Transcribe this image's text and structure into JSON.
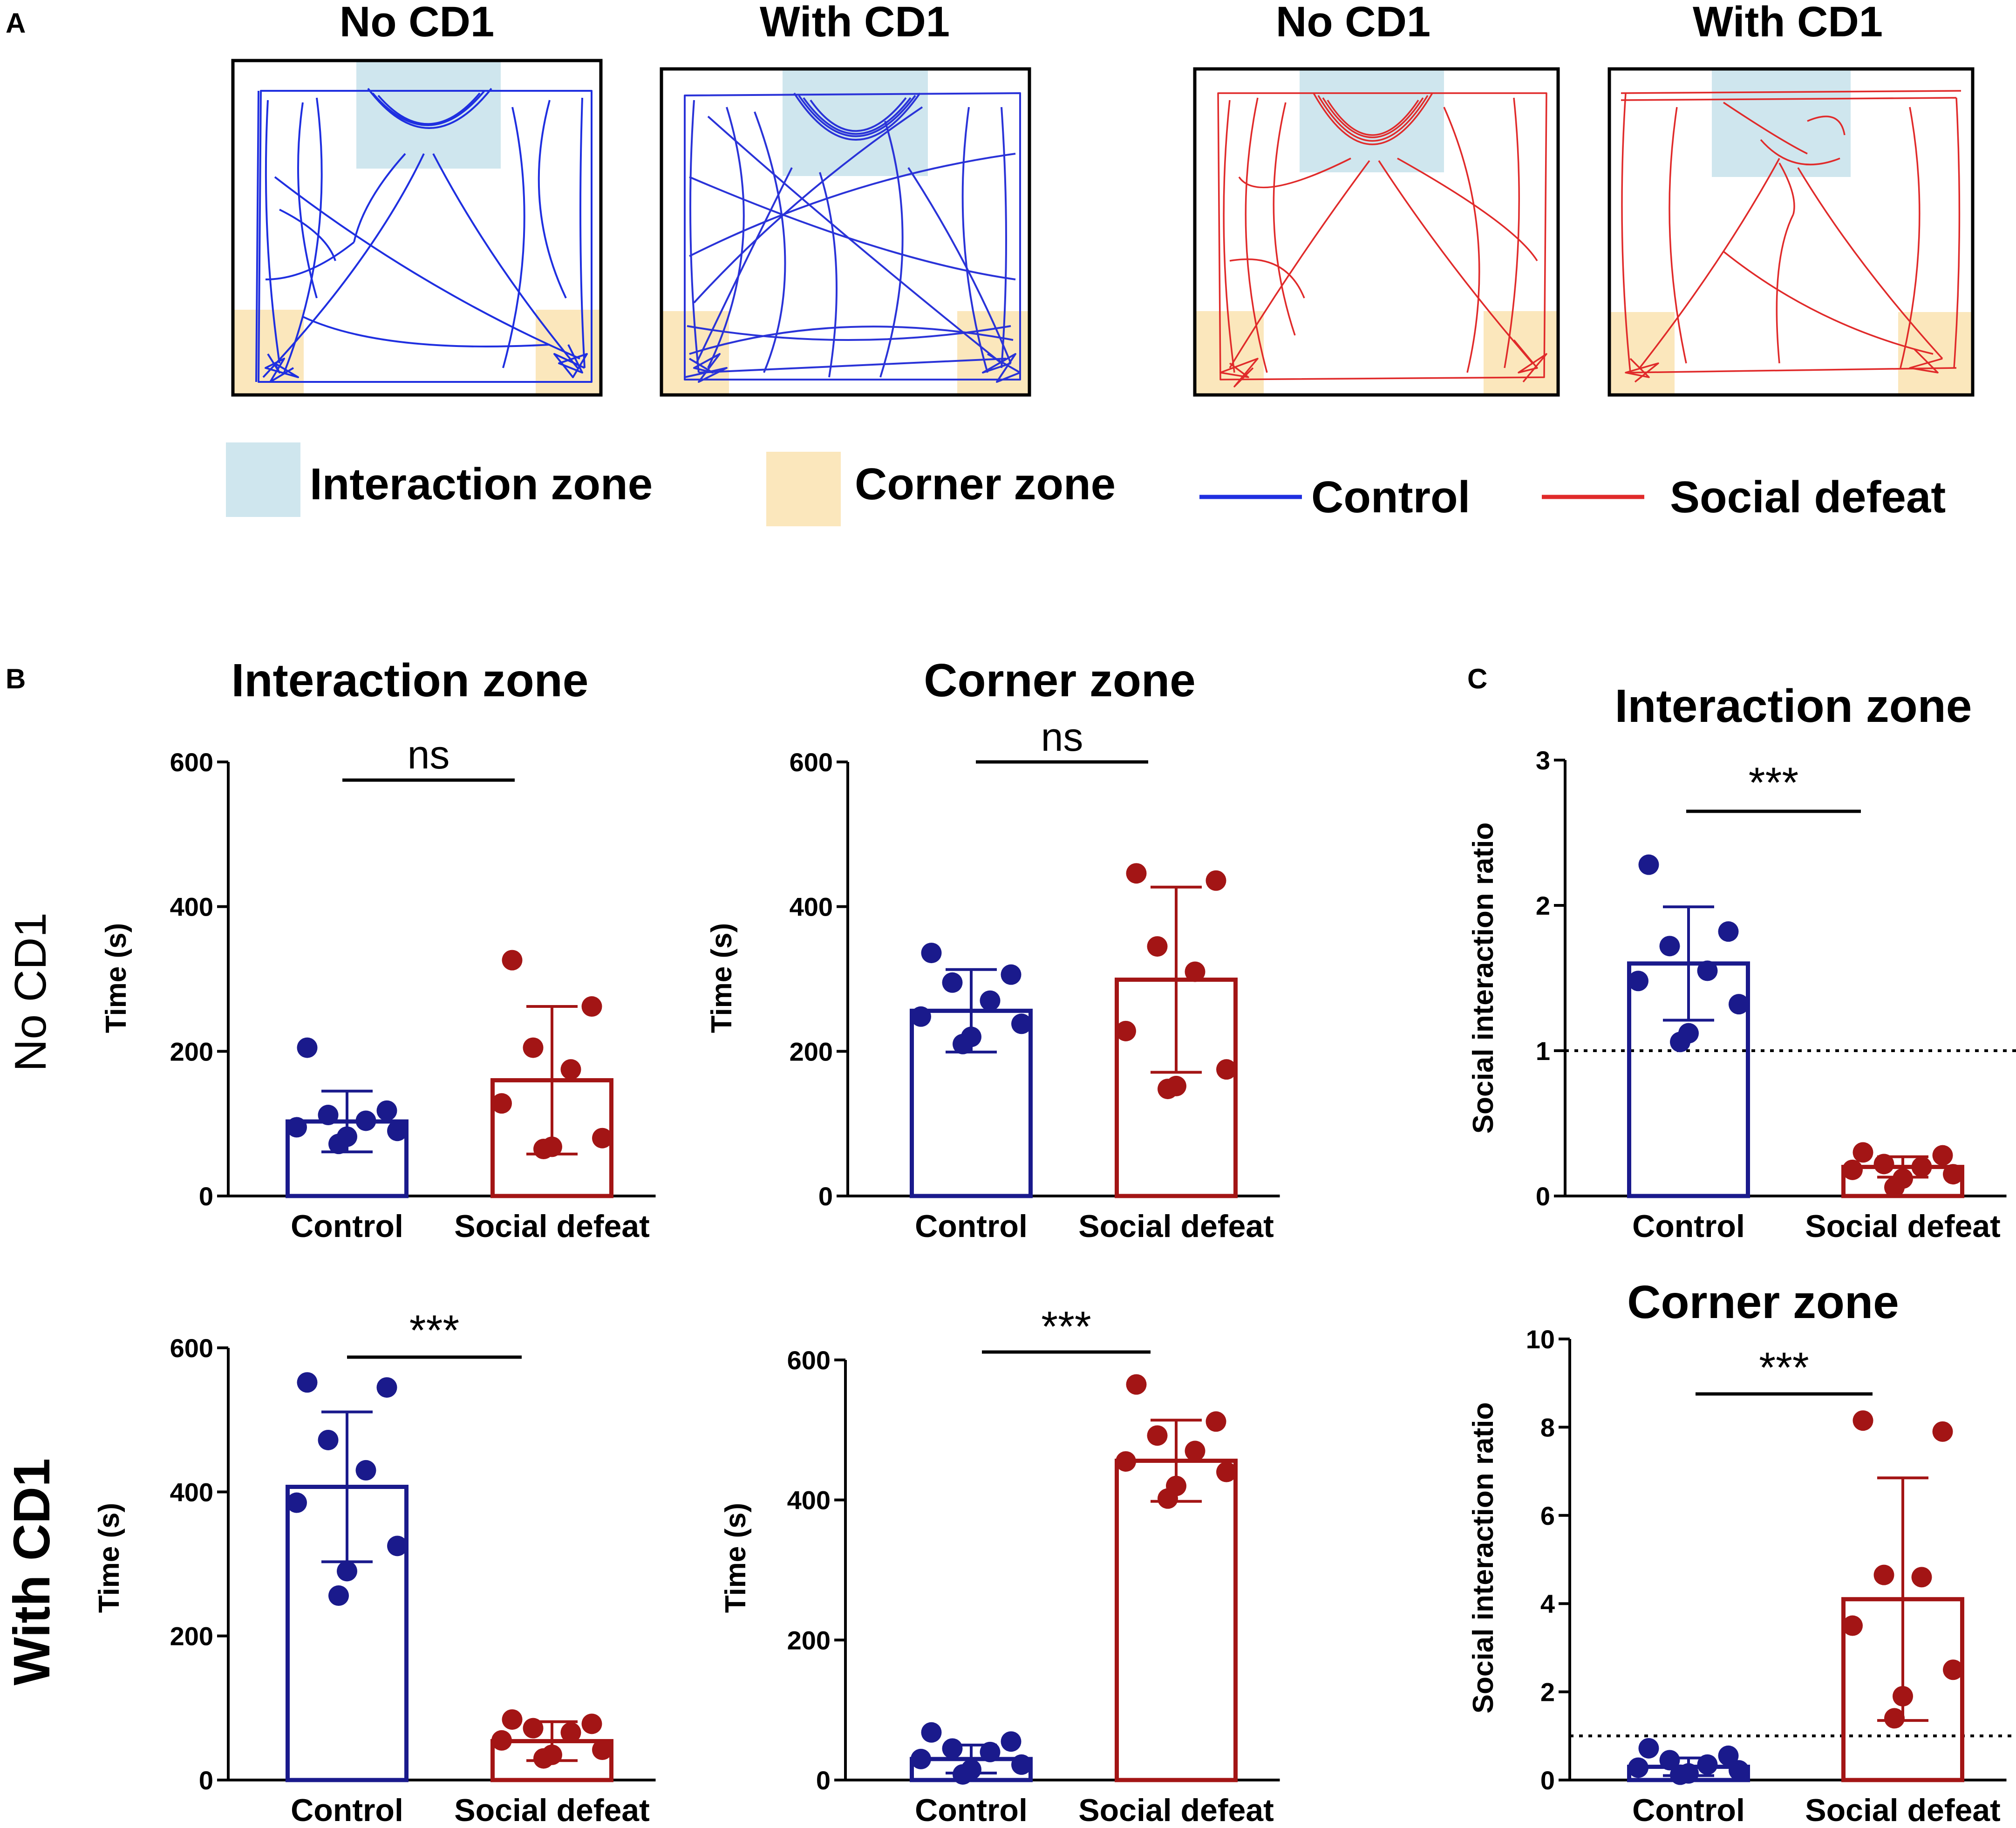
{
  "panel_labels": {
    "a": "A",
    "b": "B",
    "c": "C"
  },
  "panel_a": {
    "arena_titles": [
      "No CD1",
      "With CD1",
      "No CD1",
      "With CD1"
    ],
    "legend": {
      "interaction_zone": "Interaction zone",
      "corner_zone": "Corner zone",
      "control": "Control",
      "social_defeat": "Social defeat"
    },
    "colors": {
      "interaction_zone": "#cfe6ee",
      "corner_zone": "#fbe7bc",
      "control": "#1f2fe0",
      "social_defeat": "#e02a2a"
    }
  },
  "row_labels": {
    "no_cd1": "No CD1",
    "with_cd1": "With CD1"
  },
  "colors": {
    "control": "#1a1a8c",
    "social_defeat": "#a31515"
  },
  "chart_data": [
    {
      "id": "b1",
      "type": "bar",
      "title": "Interaction zone",
      "row": "No CD1",
      "categories": [
        "Control",
        "Social defeat"
      ],
      "ylabel": "Time (s)",
      "ylim": [
        0,
        600
      ],
      "yticks": [
        "0",
        "200",
        "400",
        "600"
      ],
      "means": [
        103,
        160
      ],
      "sd": [
        42,
        102
      ],
      "points": [
        [
          205,
          118,
          112,
          104,
          95,
          90,
          82,
          72
        ],
        [
          326,
          262,
          205,
          175,
          128,
          80,
          68,
          65
        ]
      ],
      "significance": "ns"
    },
    {
      "id": "b2",
      "type": "bar",
      "title": "Corner zone",
      "row": "No CD1",
      "categories": [
        "Control",
        "Social defeat"
      ],
      "ylabel": "Time (s)",
      "ylim": [
        0,
        600
      ],
      "yticks": [
        "0",
        "200",
        "400",
        "600"
      ],
      "means": [
        256,
        299
      ],
      "sd": [
        57,
        128
      ],
      "points": [
        [
          336,
          306,
          295,
          270,
          248,
          238,
          220,
          210
        ],
        [
          446,
          436,
          345,
          310,
          228,
          175,
          152,
          148
        ]
      ],
      "significance": "ns"
    },
    {
      "id": "c1",
      "type": "bar",
      "title": "Interaction zone",
      "row": "No CD1",
      "categories": [
        "Control",
        "Social defeat"
      ],
      "ylabel": "Social interaction ratio",
      "ylim": [
        0,
        3
      ],
      "yticks": [
        "0",
        "1",
        "2",
        "3"
      ],
      "means": [
        1.6,
        0.2
      ],
      "sd": [
        0.39,
        0.07
      ],
      "points": [
        [
          2.28,
          1.82,
          1.72,
          1.55,
          1.48,
          1.32,
          1.12,
          1.06
        ],
        [
          0.3,
          0.28,
          0.22,
          0.2,
          0.18,
          0.15,
          0.12,
          0.06
        ]
      ],
      "significance": "***",
      "reference_line": 1
    },
    {
      "id": "b3",
      "type": "bar",
      "title": "",
      "row": "With CD1",
      "categories": [
        "Control",
        "Social defeat"
      ],
      "ylabel": "Time (s)",
      "ylim": [
        0,
        600
      ],
      "yticks": [
        "0",
        "200",
        "400",
        "600"
      ],
      "means": [
        407,
        54
      ],
      "sd": [
        104,
        27
      ],
      "points": [
        [
          552,
          545,
          472,
          430,
          385,
          325,
          290,
          256
        ],
        [
          84,
          78,
          72,
          66,
          55,
          42,
          35,
          30
        ]
      ],
      "significance": "***"
    },
    {
      "id": "b4",
      "type": "bar",
      "title": "",
      "row": "With CD1",
      "categories": [
        "Control",
        "Social defeat"
      ],
      "ylabel": "Time (s)",
      "ylim": [
        0,
        600
      ],
      "yticks": [
        "0",
        "200",
        "400",
        "600"
      ],
      "means": [
        30,
        456
      ],
      "sd": [
        20,
        58
      ],
      "points": [
        [
          68,
          55,
          45,
          40,
          30,
          22,
          15,
          8
        ],
        [
          565,
          512,
          492,
          470,
          455,
          440,
          420,
          402
        ]
      ],
      "significance": "***"
    },
    {
      "id": "c2",
      "type": "bar",
      "title": "Corner zone",
      "row": "With CD1",
      "categories": [
        "Control",
        "Social defeat"
      ],
      "ylabel": "Social interaction ratio",
      "ylim": [
        0,
        10
      ],
      "yticks": [
        "0",
        "2",
        "4",
        "6",
        "8",
        "10"
      ],
      "means": [
        0.3,
        4.1
      ],
      "sd": [
        0.2,
        2.75
      ],
      "points": [
        [
          0.72,
          0.55,
          0.45,
          0.35,
          0.28,
          0.22,
          0.15,
          0.12
        ],
        [
          8.15,
          7.9,
          4.65,
          4.6,
          3.5,
          2.5,
          1.9,
          1.4
        ]
      ],
      "significance": "***",
      "reference_line": 1
    }
  ]
}
